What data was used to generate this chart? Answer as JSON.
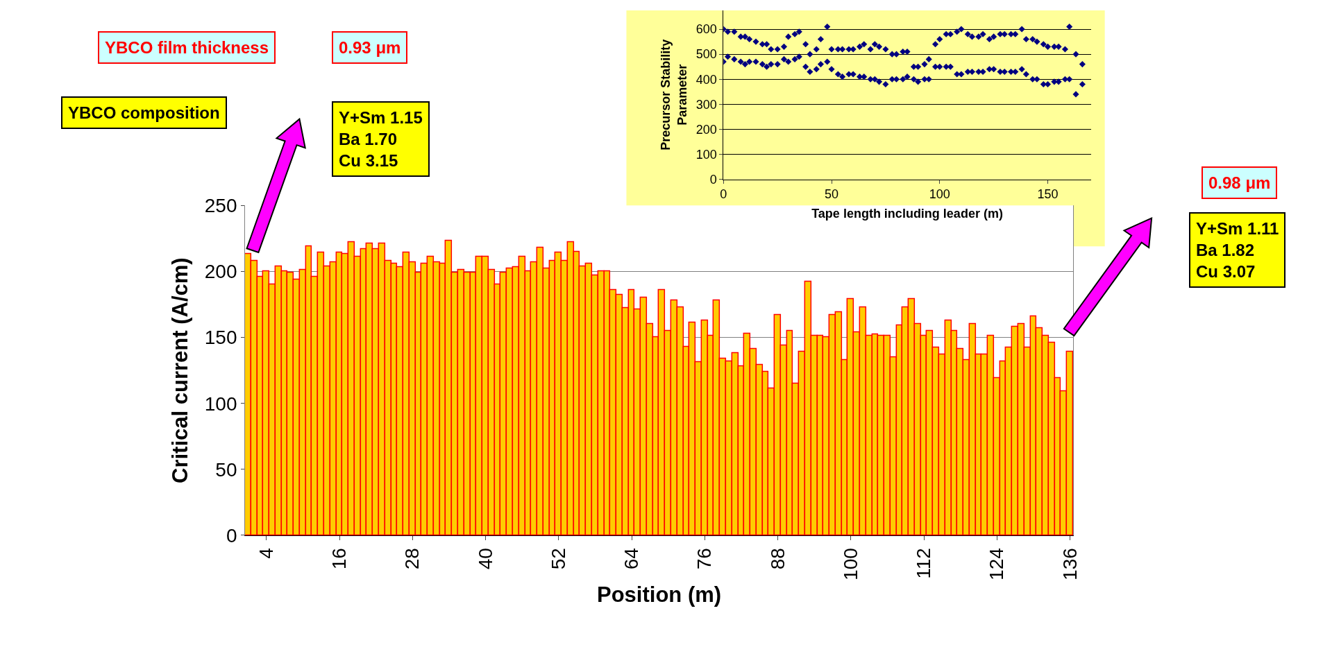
{
  "chart_data": [
    {
      "type": "bar",
      "xlabel": "Position (m)",
      "ylabel": "Critical current (A/cm)",
      "categories": [
        null,
        null,
        null,
        "4",
        null,
        null,
        null,
        null,
        null,
        null,
        null,
        null,
        null,
        null,
        null,
        "16",
        null,
        null,
        null,
        null,
        null,
        null,
        null,
        null,
        null,
        null,
        null,
        "28",
        null,
        null,
        null,
        null,
        null,
        null,
        null,
        null,
        null,
        null,
        null,
        "40",
        null,
        null,
        null,
        null,
        null,
        null,
        null,
        null,
        null,
        null,
        null,
        "52",
        null,
        null,
        null,
        null,
        null,
        null,
        null,
        null,
        null,
        null,
        null,
        "64",
        null,
        null,
        null,
        null,
        null,
        null,
        null,
        null,
        null,
        null,
        null,
        "76",
        null,
        null,
        null,
        null,
        null,
        null,
        null,
        null,
        null,
        null,
        null,
        "88",
        null,
        null,
        null,
        null,
        null,
        null,
        null,
        null,
        null,
        null,
        null,
        "100",
        null,
        null,
        null,
        null,
        null,
        null,
        null,
        null,
        null,
        null,
        null,
        "112",
        null,
        null,
        null,
        null,
        null,
        null,
        null,
        null,
        null,
        null,
        null,
        "124",
        null,
        null,
        null,
        null,
        null,
        null,
        null,
        null,
        null,
        null,
        null,
        "136"
      ],
      "series": [
        {
          "color": "#ffcc00",
          "values": [
            213,
            208,
            196,
            200,
            190,
            204,
            200,
            199,
            194,
            201,
            219,
            196,
            214,
            204,
            207,
            214,
            213,
            222,
            211,
            217,
            221,
            217,
            221,
            208,
            206,
            203,
            214,
            207,
            199,
            206,
            211,
            207,
            206,
            223,
            199,
            201,
            199,
            199,
            211,
            211,
            201,
            190,
            199,
            202,
            203,
            211,
            200,
            207,
            218,
            202,
            208,
            214,
            208,
            222,
            215,
            204,
            206,
            197,
            200,
            200,
            186,
            182,
            172,
            186,
            171,
            180,
            160,
            150,
            186,
            155,
            178,
            173,
            143,
            161,
            131,
            163,
            151,
            178,
            134,
            132,
            138,
            128,
            153,
            141,
            129,
            124,
            111,
            167,
            144,
            155,
            115,
            139,
            192,
            151,
            151,
            150,
            167,
            169,
            133,
            179,
            154,
            173,
            151,
            152,
            151,
            151,
            135,
            159,
            173,
            179,
            160,
            151,
            155,
            142,
            137,
            163,
            155,
            141,
            133,
            160,
            137,
            137,
            151,
            119,
            132,
            142,
            158,
            160,
            142,
            166,
            157,
            151,
            146,
            119,
            109,
            139
          ]
        }
      ],
      "ylim": [
        0,
        250
      ],
      "yticks": [
        0,
        50,
        100,
        150,
        200,
        250
      ],
      "grid": "y",
      "annotations": [
        "YBCO film thickness",
        "0.93 μm",
        "YBCO composition",
        "Y+Sm 1.15\nBa 1.70\nCu 3.15",
        "0.98 μm",
        "Y+Sm 1.11\nBa 1.82\nCu 3.07"
      ]
    },
    {
      "type": "scatter",
      "xlabel": "Tape length including leader (m)",
      "ylabel": "Precursor Stability\nParameter",
      "marker": "diamond",
      "grid": "y",
      "xlim": [
        0,
        170
      ],
      "xticks": [
        0,
        50,
        100,
        150
      ],
      "ylim": [
        0,
        675
      ],
      "yticks": [
        0,
        100,
        200,
        300,
        400,
        500,
        600
      ],
      "series": [
        {
          "color": "#000080",
          "x": [
            0,
            0,
            2,
            2,
            5,
            5,
            8,
            8,
            10,
            10,
            12,
            12,
            15,
            15,
            18,
            18,
            20,
            20,
            22,
            22,
            25,
            25,
            28,
            28,
            30,
            30,
            33,
            33,
            35,
            35,
            38,
            38,
            40,
            40,
            43,
            43,
            45,
            45,
            48,
            48,
            50,
            50,
            53,
            53,
            55,
            55,
            58,
            58,
            60,
            60,
            63,
            63,
            65,
            65,
            68,
            68,
            70,
            70,
            72,
            72,
            75,
            75,
            78,
            78,
            80,
            80,
            83,
            83,
            85,
            85,
            88,
            88,
            90,
            90,
            93,
            93,
            95,
            95,
            98,
            98,
            100,
            100,
            103,
            103,
            105,
            105,
            108,
            108,
            110,
            110,
            113,
            113,
            115,
            115,
            118,
            118,
            120,
            120,
            123,
            123,
            125,
            125,
            128,
            128,
            130,
            130,
            133,
            133,
            135,
            135,
            138,
            138,
            140,
            140,
            143,
            143,
            145,
            145,
            148,
            148,
            150,
            150,
            153,
            153,
            155,
            155,
            158,
            158,
            160,
            160,
            163,
            163,
            166,
            166
          ],
          "values": [
            600,
            470,
            590,
            490,
            590,
            480,
            570,
            470,
            570,
            460,
            560,
            470,
            550,
            470,
            540,
            460,
            540,
            450,
            520,
            460,
            520,
            460,
            530,
            480,
            570,
            470,
            580,
            480,
            590,
            490,
            540,
            450,
            500,
            430,
            520,
            440,
            560,
            460,
            610,
            470,
            520,
            440,
            520,
            420,
            520,
            410,
            520,
            420,
            520,
            420,
            530,
            410,
            540,
            410,
            520,
            400,
            540,
            400,
            530,
            390,
            520,
            380,
            500,
            400,
            500,
            400,
            510,
            400,
            510,
            410,
            450,
            400,
            450,
            390,
            460,
            400,
            480,
            400,
            540,
            450,
            560,
            450,
            580,
            450,
            580,
            450,
            590,
            420,
            600,
            420,
            580,
            430,
            570,
            430,
            570,
            430,
            580,
            430,
            560,
            440,
            570,
            440,
            580,
            430,
            580,
            430,
            580,
            430,
            580,
            430,
            600,
            440,
            560,
            420,
            560,
            400,
            550,
            400,
            540,
            380,
            530,
            380,
            530,
            390,
            530,
            390,
            520,
            400,
            610,
            400,
            500,
            340,
            460,
            380
          ]
        }
      ]
    }
  ]
}
